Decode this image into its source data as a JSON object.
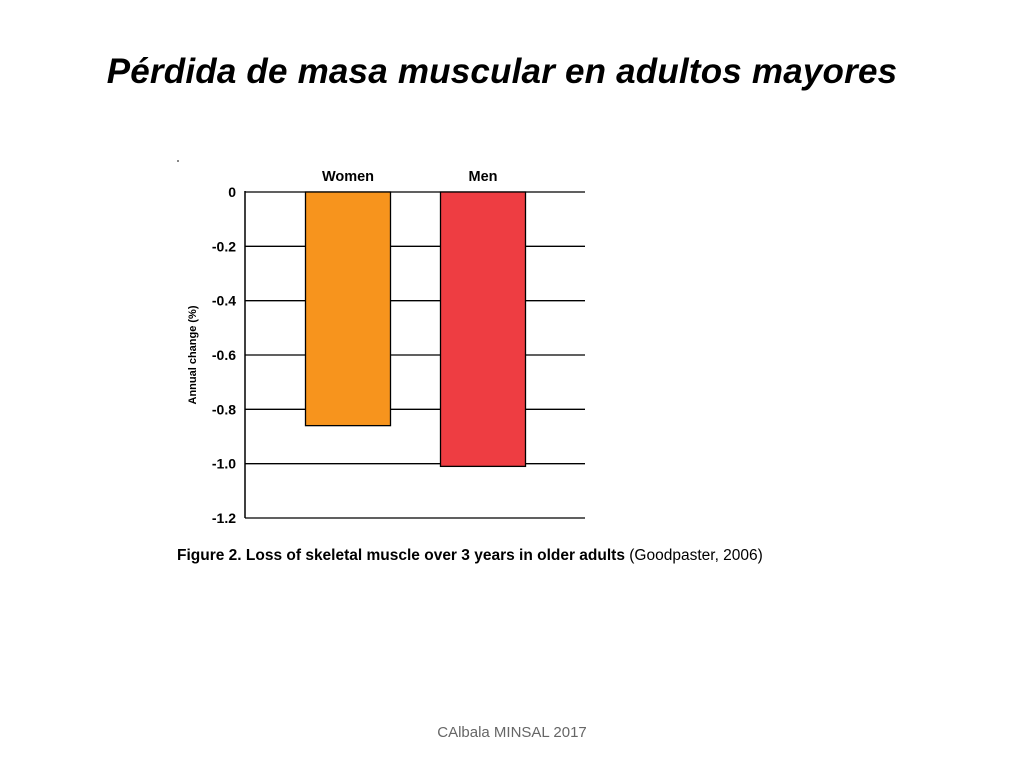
{
  "slide": {
    "title": "Pérdida de masa muscular en adultos mayores",
    "footer": "CAlbala MINSAL 2017"
  },
  "figure": {
    "caption_bold": "Figure 2. Loss of skeletal muscle over 3 years in older adults",
    "caption_normal": " (Goodpaster, 2006)"
  },
  "chart_data": {
    "type": "bar",
    "categories": [
      "Women",
      "Men"
    ],
    "values": [
      -0.86,
      -1.01
    ],
    "colors": [
      "#F7941D",
      "#EE3D42"
    ],
    "ylabel": "Annual change (%)",
    "ylim": [
      -1.2,
      0
    ],
    "yticks": [
      0,
      -0.2,
      -0.4,
      -0.6,
      -0.8,
      -1.0,
      -1.2
    ],
    "ytick_labels": [
      "0",
      "-0.2",
      "-0.4",
      "-0.6",
      "-0.8",
      "-1.0",
      "-1.2"
    ],
    "grid": true,
    "category_labels_position": "top"
  }
}
